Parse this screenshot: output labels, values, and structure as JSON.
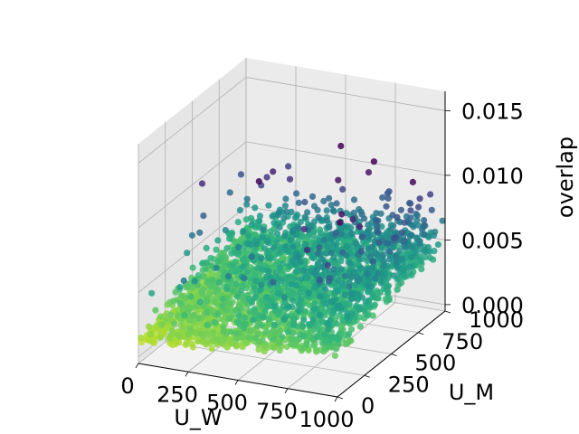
{
  "chart_data": {
    "type": "scatter",
    "projection": "3d",
    "title": "",
    "xlabel": "U_W",
    "ylabel": "U_M",
    "zlabel": "overlap",
    "xlim": [
      0,
      1000
    ],
    "ylim": [
      0,
      1000
    ],
    "zlim": [
      -0.0005,
      0.0165
    ],
    "x_ticks": [
      "0",
      "250",
      "500",
      "750",
      "1000"
    ],
    "y_ticks": [
      "0",
      "250",
      "500",
      "750",
      "1000"
    ],
    "z_ticks": [
      "0.000",
      "0.005",
      "0.010",
      "0.015"
    ],
    "grid": true,
    "legend": "none",
    "colormap": "viridis",
    "color_encodes": "overlap (inverted: high overlap = dark purple, low overlap = yellow)",
    "point_distribution": {
      "x_range": [
        0,
        1000
      ],
      "y_range": [
        0,
        1000
      ],
      "overlap_typical_range": [
        0.0,
        0.009
      ],
      "overlap_max": 0.0153,
      "note": "dense uniform grid of points filling the x-y square; overlap increases with x and y"
    },
    "colors": {
      "pane_face": "#f2f2f2",
      "grid": "#b0b0b0",
      "low": "#fde725",
      "mid": "#21918c",
      "high": "#440154"
    }
  }
}
